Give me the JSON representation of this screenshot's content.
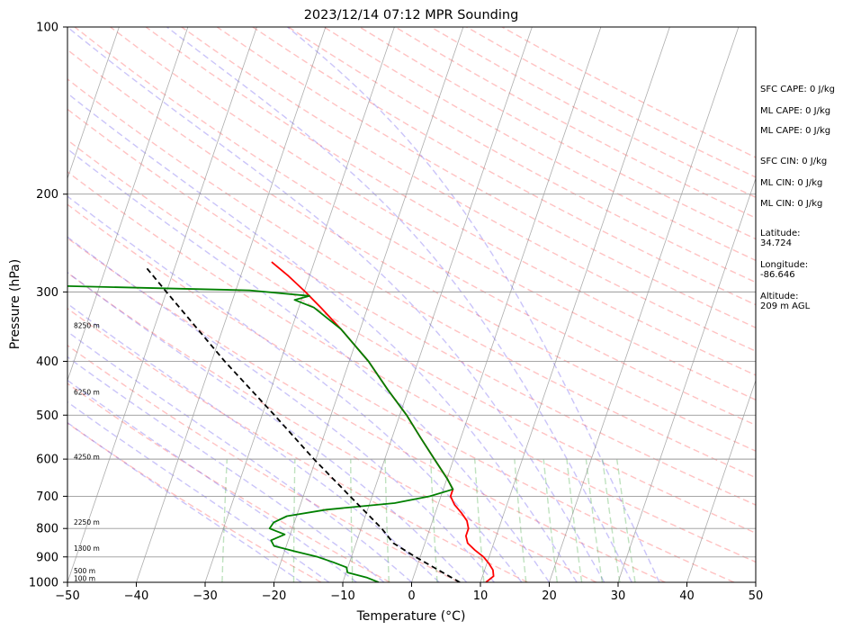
{
  "chart_data": {
    "type": "line",
    "title": "2023/12/14 07:12 MPR Sounding",
    "xlabel": "Temperature (°C)",
    "ylabel": "Pressure (hPa)",
    "xlim": [
      -50,
      50
    ],
    "ylim": [
      1000,
      100
    ],
    "y_scale": "log",
    "xticks": [
      -50,
      -40,
      -30,
      -20,
      -10,
      0,
      10,
      20,
      30,
      40,
      50
    ],
    "xtick_labels": [
      "−50",
      "−40",
      "−30",
      "−20",
      "−10",
      "0",
      "10",
      "20",
      "30",
      "40",
      "50"
    ],
    "yticks": [
      1000,
      900,
      800,
      700,
      600,
      500,
      400,
      300,
      200,
      100
    ],
    "ytick_labels": [
      "1000",
      "900",
      "800",
      "700",
      "600",
      "500",
      "400",
      "300",
      "200",
      "100"
    ],
    "series": [
      {
        "role": "temperature",
        "color": "#ff0000",
        "points": [
          [
            1000,
            10.8
          ],
          [
            975,
            11.6
          ],
          [
            950,
            11.2
          ],
          [
            925,
            10.3
          ],
          [
            900,
            9.2
          ],
          [
            875,
            7.6
          ],
          [
            850,
            6.2
          ],
          [
            825,
            5.6
          ],
          [
            800,
            5.6
          ],
          [
            775,
            5.0
          ],
          [
            750,
            3.8
          ],
          [
            725,
            2.4
          ],
          [
            700,
            1.4
          ],
          [
            680,
            1.4
          ],
          [
            650,
            0.0
          ],
          [
            600,
            -2.8
          ],
          [
            550,
            -5.8
          ],
          [
            500,
            -9.0
          ],
          [
            450,
            -13.0
          ],
          [
            400,
            -17.2
          ],
          [
            350,
            -22.8
          ],
          [
            320,
            -26.8
          ],
          [
            300,
            -29.8
          ],
          [
            280,
            -33.2
          ],
          [
            265,
            -36.2
          ]
        ]
      },
      {
        "role": "dewpoint",
        "color": "#008000",
        "points": [
          [
            1000,
            -4.8
          ],
          [
            980,
            -6.8
          ],
          [
            960,
            -9.8
          ],
          [
            940,
            -10.2
          ],
          [
            920,
            -12.4
          ],
          [
            900,
            -14.9
          ],
          [
            880,
            -18.4
          ],
          [
            860,
            -21.8
          ],
          [
            840,
            -22.5
          ],
          [
            820,
            -20.8
          ],
          [
            800,
            -23.3
          ],
          [
            780,
            -23.0
          ],
          [
            760,
            -21.4
          ],
          [
            740,
            -16.0
          ],
          [
            720,
            -6.4
          ],
          [
            700,
            -1.6
          ],
          [
            680,
            1.4
          ],
          [
            650,
            0.0
          ],
          [
            600,
            -2.8
          ],
          [
            550,
            -5.8
          ],
          [
            500,
            -9.0
          ],
          [
            450,
            -13.0
          ],
          [
            400,
            -17.2
          ],
          [
            350,
            -22.8
          ],
          [
            320,
            -27.8
          ],
          [
            310,
            -31.0
          ],
          [
            305,
            -29.0
          ],
          [
            298,
            -38.0
          ],
          [
            292,
            -69.0
          ]
        ]
      },
      {
        "role": "parcel",
        "color": "#000000",
        "points": [
          [
            1000,
            7.0
          ],
          [
            900,
            -0.7
          ],
          [
            850,
            -4.6
          ],
          [
            800,
            -7.0
          ],
          [
            700,
            -13.2
          ],
          [
            600,
            -20.3
          ],
          [
            500,
            -28.2
          ],
          [
            400,
            -38.1
          ],
          [
            300,
            -50.0
          ],
          [
            270,
            -54.3
          ]
        ]
      }
    ],
    "height_labels": [
      {
        "p": 985,
        "text": "100 m"
      },
      {
        "p": 955,
        "text": "500 m"
      },
      {
        "p": 870,
        "text": "1300 m"
      },
      {
        "p": 780,
        "text": "2250 m"
      },
      {
        "p": 595,
        "text": "4250 m"
      },
      {
        "p": 455,
        "text": "6250 m"
      },
      {
        "p": 345,
        "text": "8250 m"
      }
    ],
    "annotations": [
      {
        "lines": [
          "SFC CAPE: 0 J/kg"
        ]
      },
      {
        "lines": [
          "ML CAPE: 0 J/kg"
        ]
      },
      {
        "lines": [
          "ML CAPE: 0 J/kg"
        ]
      },
      {
        "lines": [
          "SFC CIN: 0 J/kg"
        ]
      },
      {
        "lines": [
          "ML CIN: 0 J/kg"
        ]
      },
      {
        "lines": [
          "ML CIN: 0 J/kg"
        ]
      },
      {
        "lines": [
          "Latitude:",
          "34.724"
        ]
      },
      {
        "lines": [
          "Longitude:",
          "-86.646"
        ]
      },
      {
        "lines": [
          "Altitude:",
          "209 m AGL"
        ]
      }
    ],
    "background": {
      "dry_adiabats": true,
      "moist_adiabats": true,
      "mixing_ratio_lines": true,
      "isotherms": true,
      "isobars": true
    }
  }
}
